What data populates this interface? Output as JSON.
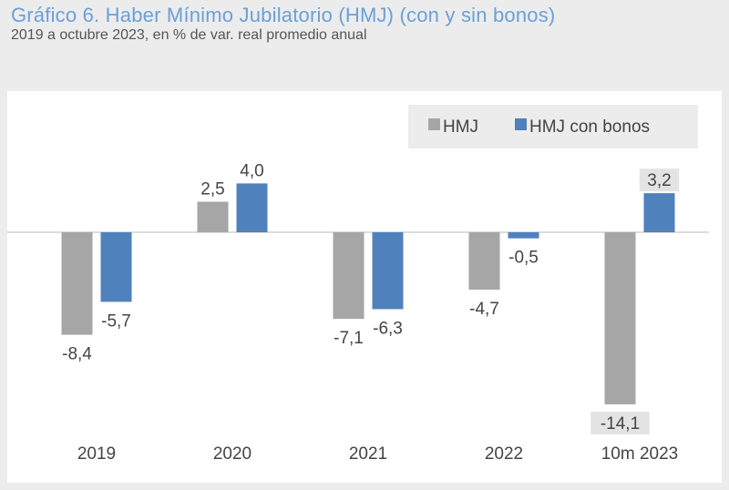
{
  "chart_data": {
    "type": "bar",
    "title": "Gráfico 6. Haber Mínimo Jubilatorio (HMJ) (con y sin bonos)",
    "subtitle": "2019 a octubre 2023, en % de var. real promedio anual",
    "categories": [
      "2019",
      "2020",
      "2021",
      "2022",
      "10m 2023"
    ],
    "series": [
      {
        "name": "HMJ",
        "color": "#a6a6a6",
        "values": [
          -8.4,
          2.5,
          -7.1,
          -4.7,
          -14.1
        ],
        "labels": [
          "-8,4",
          "2,5",
          "-7,1",
          "-4,7",
          "-14,1"
        ]
      },
      {
        "name": "HMJ con bonos",
        "color": "#4f81bd",
        "values": [
          -5.7,
          4.0,
          -6.3,
          -0.5,
          3.2
        ],
        "labels": [
          "-5,7",
          "4,0",
          "-6,3",
          "-0,5",
          "3,2"
        ]
      }
    ],
    "xlabel": "",
    "ylabel": "",
    "ylim": [
      -15.5,
      6.0
    ],
    "grid": false,
    "legend_position": "top-right"
  }
}
